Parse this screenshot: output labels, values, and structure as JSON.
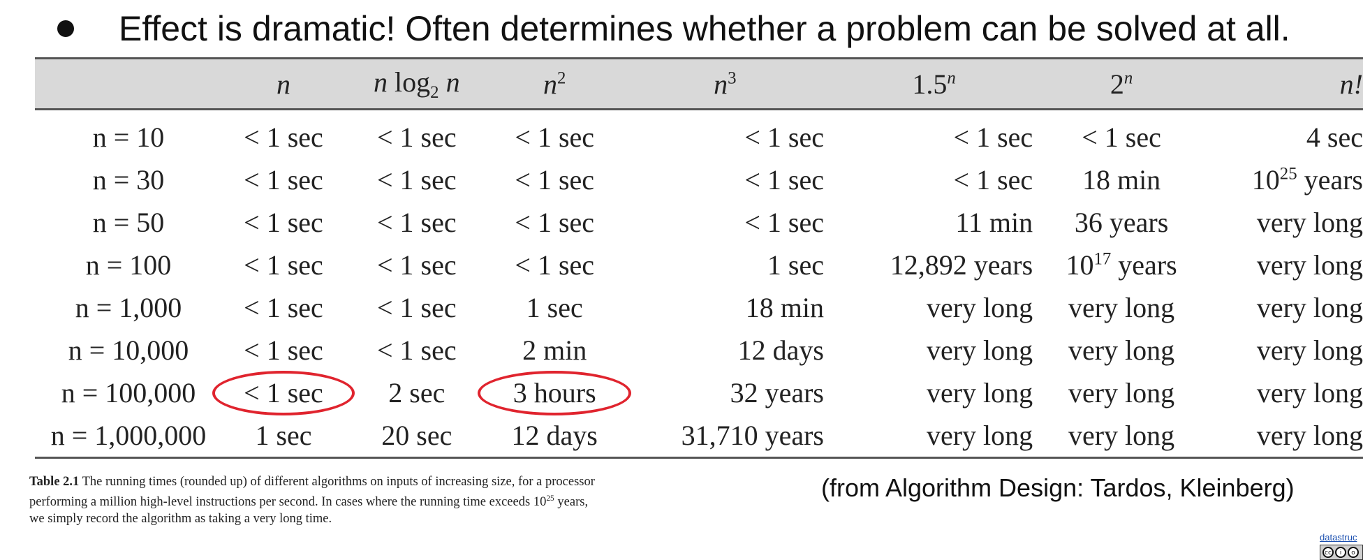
{
  "slide": {
    "bullet_text": "Effect is dramatic! Often determines whether a problem can be solved at all.",
    "source_text": "(from Algorithm Design: Tardos, Kleinberg)",
    "footer_link_text": "datastruc"
  },
  "table": {
    "headers": {
      "n": "n",
      "nlogn_n1": "n",
      "nlogn_log": "log",
      "nlogn_sub": "2",
      "nlogn_n2": "n",
      "n2_base": "n",
      "n2_exp": "2",
      "n3_base": "n",
      "n3_exp": "3",
      "exp15_base": "1.5",
      "exp15_exp": "n",
      "exp2_base": "2",
      "exp2_exp": "n",
      "fact": "n!"
    },
    "rows": [
      {
        "label": "n = 10",
        "n": "< 1 sec",
        "nlogn": "< 1 sec",
        "n2": "< 1 sec",
        "n3": "< 1 sec",
        "exp15": "< 1 sec",
        "exp2": "< 1 sec",
        "fact": "4 sec"
      },
      {
        "label": "n = 30",
        "n": "< 1 sec",
        "nlogn": "< 1 sec",
        "n2": "< 1 sec",
        "n3": "< 1 sec",
        "exp15": "< 1 sec",
        "exp2": "18 min",
        "fact_base": "10",
        "fact_exp": "25",
        "fact_unit": " years"
      },
      {
        "label": "n = 50",
        "n": "< 1 sec",
        "nlogn": "< 1 sec",
        "n2": "< 1 sec",
        "n3": "< 1 sec",
        "exp15": "11 min",
        "exp2": "36 years",
        "fact": "very long"
      },
      {
        "label": "n = 100",
        "n": "< 1 sec",
        "nlogn": "< 1 sec",
        "n2": "< 1 sec",
        "n3": "1 sec",
        "exp15": "12,892 years",
        "exp2_base": "10",
        "exp2_exp": "17",
        "exp2_unit": " years",
        "fact": "very long"
      },
      {
        "label": "n = 1,000",
        "n": "< 1 sec",
        "nlogn": "< 1 sec",
        "n2": "1 sec",
        "n3": "18 min",
        "exp15": "very long",
        "exp2": "very long",
        "fact": "very long"
      },
      {
        "label": "n = 10,000",
        "n": "< 1 sec",
        "nlogn": "< 1 sec",
        "n2": "2 min",
        "n3": "12 days",
        "exp15": "very long",
        "exp2": "very long",
        "fact": "very long"
      },
      {
        "label": "n = 100,000",
        "n": "< 1 sec",
        "nlogn": "2 sec",
        "n2": "3 hours",
        "n3": "32 years",
        "exp15": "very long",
        "exp2": "very long",
        "fact": "very long"
      },
      {
        "label": "n = 1,000,000",
        "n": "1 sec",
        "nlogn": "20 sec",
        "n2": "12 days",
        "n3": "31,710 years",
        "exp15": "very long",
        "exp2": "very long",
        "fact": "very long"
      }
    ],
    "highlight_color": "#e0242e"
  },
  "caption": {
    "label": "Table 2.1",
    "text_before_exp": " The running times (rounded up) of different algorithms on inputs of increasing size, for a processor performing a million high-level instructions per second. In cases where the running time exceeds ",
    "exp_base": "10",
    "exp_power": "25",
    "text_after_exp": " years, we simply record the algorithm as taking a very long time."
  }
}
